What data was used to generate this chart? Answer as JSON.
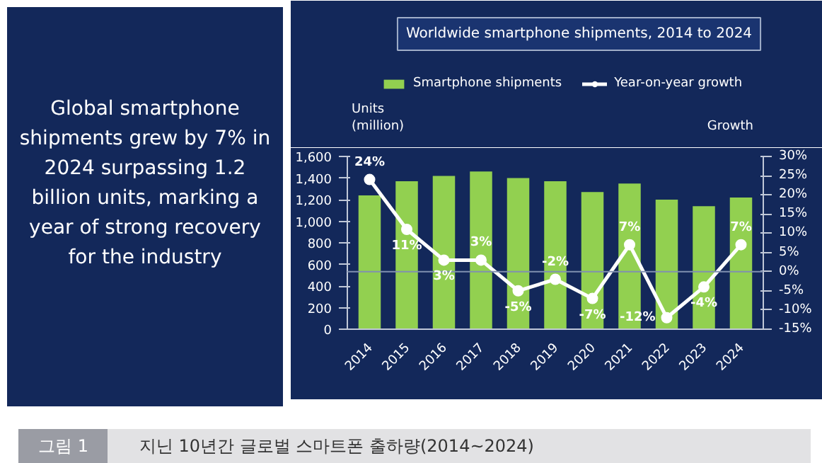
{
  "chart_data": {
    "type": "bar",
    "title": "Worldwide smartphone shipments, 2014 to 2024",
    "categories": [
      "2014",
      "2015",
      "2016",
      "2017",
      "2018",
      "2019",
      "2020",
      "2021",
      "2022",
      "2023",
      "2024"
    ],
    "series": [
      {
        "name": "Smartphone shipments",
        "color": "#92d050",
        "values": [
          1240,
          1370,
          1420,
          1460,
          1400,
          1370,
          1270,
          1350,
          1200,
          1140,
          1220
        ]
      },
      {
        "name": "Year-on-year growth",
        "type": "line",
        "axis": "y2",
        "color": "#ffffff",
        "marker": "circle",
        "values": [
          24,
          11,
          3,
          3,
          -5,
          -2,
          -7,
          7,
          -12,
          -4,
          7
        ],
        "value_labels": [
          "24%",
          "11%",
          "3%",
          "3%",
          "-5%",
          "-2%",
          "-7%",
          "7%",
          "-12%",
          "-4%",
          "7%"
        ]
      }
    ],
    "ylabel": "Units (million)",
    "y2label": "Growth",
    "ylim": [
      0,
      1600
    ],
    "yticks": [
      0,
      200,
      400,
      {
        "value": 600,
        "label": "600"
      },
      800,
      {
        "value": 1000,
        "label": "1,000"
      },
      {
        "value": 1200,
        "label": "1,200"
      },
      {
        "value": 1400,
        "label": "1,400"
      },
      {
        "value": 1600,
        "label": "1,600"
      }
    ],
    "y2lim": [
      -15,
      30
    ],
    "y2ticks": [
      {
        "value": -15,
        "label": "-15%"
      },
      {
        "value": -10,
        "label": "-10%"
      },
      {
        "value": -5,
        "label": "-5%"
      },
      {
        "value": 0,
        "label": "0%"
      },
      {
        "value": 5,
        "label": "5%"
      },
      {
        "value": 10,
        "label": "10%"
      },
      {
        "value": 15,
        "label": "15%"
      },
      {
        "value": 20,
        "label": "20%"
      },
      {
        "value": 25,
        "label": "25%"
      },
      {
        "value": 30,
        "label": "30%"
      }
    ],
    "ref_lines": [
      {
        "axis": "y2",
        "value": 0,
        "label": null,
        "color": "#8090b0"
      }
    ],
    "legend": "top",
    "grid": false,
    "annotations": [
      "Global smartphone shipments grew by 7% in 2024 surpassing 1.2 billion units, marking a year of strong recovery for the industry",
      "그림 1",
      "지닌 10년간 글로벌 스마트폰 출하량(2014~2024)"
    ]
  }
}
